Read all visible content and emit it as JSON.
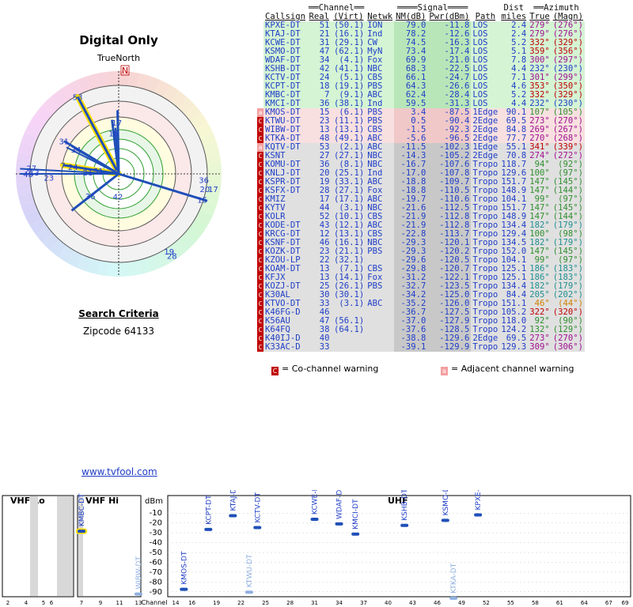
{
  "polar": {
    "title": "Digital Only",
    "true_north_label": "TrueNorth",
    "north_label": "N",
    "colors": {
      "ring_fill": "#ffffff",
      "beam": "#1f4fb8",
      "beam_highlight": "#ffe000",
      "ring_green": "#2fa02f"
    },
    "stations": [
      {
        "label": "53",
        "azimuth": 332,
        "strength": 0.85,
        "highlight": true
      },
      {
        "label": "7",
        "azimuth": 279,
        "strength": 0.55,
        "highlight": true
      },
      {
        "label": "31",
        "azimuth": 301,
        "strength": 0.62
      },
      {
        "label": "34",
        "azimuth": 300,
        "strength": 0.48
      },
      {
        "label": "24",
        "azimuth": 279,
        "strength": 0.45
      },
      {
        "label": "18",
        "azimuth": 353,
        "strength": 0.4
      },
      {
        "label": "17",
        "azimuth": 358,
        "strength": 0.5
      },
      {
        "label": "51",
        "azimuth": 279,
        "strength": 0.2
      },
      {
        "label": "21",
        "azimuth": 273,
        "strength": 0.3
      },
      {
        "label": "23",
        "azimuth": 267,
        "strength": 0.68
      },
      {
        "label": "27",
        "azimuth": 274,
        "strength": 0.85
      },
      {
        "label": "48",
        "azimuth": 270,
        "strength": 0.88
      },
      {
        "label": "13",
        "azimuth": 271,
        "strength": 0.82
      },
      {
        "label": "42",
        "azimuth": 182,
        "strength": 0.22
      },
      {
        "label": "36",
        "azimuth": 232,
        "strength": 0.35
      },
      {
        "label": "15",
        "azimuth": 107,
        "strength": 0.85
      },
      {
        "label": "36",
        "azimuth": 94,
        "strength": 0.83
      },
      {
        "label": "20",
        "azimuth": 100,
        "strength": 0.85
      },
      {
        "label": "17",
        "azimuth": 99,
        "strength": 0.93
      },
      {
        "label": "19",
        "azimuth": 147,
        "strength": 0.9
      },
      {
        "label": "28",
        "azimuth": 147,
        "strength": 0.95
      }
    ],
    "beams": [
      {
        "azimuth": 332,
        "strength": 0.85,
        "width": 3,
        "highlight": true
      },
      {
        "azimuth": 279,
        "strength": 0.55,
        "width": 3,
        "highlight": true
      },
      {
        "azimuth": 301,
        "strength": 0.62,
        "width": 3
      },
      {
        "azimuth": 300,
        "strength": 0.5,
        "width": 2
      },
      {
        "azimuth": 297,
        "strength": 0.57,
        "width": 2
      },
      {
        "azimuth": 353,
        "strength": 0.53,
        "width": 3
      },
      {
        "azimuth": 359,
        "strength": 0.62,
        "width": 3
      },
      {
        "azimuth": 356,
        "strength": 0.45,
        "width": 2
      },
      {
        "azimuth": 232,
        "strength": 0.58,
        "width": 3
      },
      {
        "azimuth": 107,
        "strength": 0.9,
        "width": 3
      },
      {
        "azimuth": 273,
        "strength": 0.96,
        "width": 2
      },
      {
        "azimuth": 270,
        "strength": 0.96,
        "width": 2
      }
    ]
  },
  "criteria": {
    "title": "Search Criteria",
    "zipcode": "Zipcode 64133"
  },
  "table": {
    "group_headers": {
      "channel": "Channel",
      "signal": "Signal",
      "azimuth": "Azimuth"
    },
    "columns": [
      "Callsign",
      "Real",
      "(Virt)",
      "Netwk",
      "NM(dB)",
      "Pwr(dBm)",
      "Path",
      "Dist miles",
      "True",
      "(Magn)"
    ],
    "col_dist_top": "Dist",
    "col_dist_bottom": "miles",
    "rows": [
      {
        "warn": "",
        "callsign": "KPXE-DT",
        "real": "51",
        "virt": "(50.1)",
        "netwk": "ION",
        "nm": "79.0",
        "pwr": "-11.8",
        "path": "LOS",
        "dist": "2.4",
        "true": "279°",
        "magn": "(276°)",
        "zone": "green",
        "azcolor": "#a01090"
      },
      {
        "warn": "",
        "callsign": "KTAJ-DT",
        "real": "21",
        "virt": "(16.1)",
        "netwk": "Ind",
        "nm": "78.2",
        "pwr": "-12.6",
        "path": "LOS",
        "dist": "2.4",
        "true": "279°",
        "magn": "(276°)",
        "zone": "green",
        "azcolor": "#a01090"
      },
      {
        "warn": "",
        "callsign": "KCWE-DT",
        "real": "31",
        "virt": "(29.1)",
        "netwk": "CW",
        "nm": "74.5",
        "pwr": "-16.3",
        "path": "LOS",
        "dist": "5.2",
        "true": "332°",
        "magn": "(329°)",
        "zone": "green",
        "azcolor": "#c00000"
      },
      {
        "warn": "",
        "callsign": "KSMO-DT",
        "real": "47",
        "virt": "(62.1)",
        "netwk": "MyN",
        "nm": "73.4",
        "pwr": "-17.4",
        "path": "LOS",
        "dist": "5.1",
        "true": "359°",
        "magn": "(356°)",
        "zone": "green",
        "azcolor": "#c00000"
      },
      {
        "warn": "",
        "callsign": "WDAF-DT",
        "real": "34",
        "virt": "(4.1)",
        "netwk": "Fox",
        "nm": "69.9",
        "pwr": "-21.0",
        "path": "LOS",
        "dist": "7.8",
        "true": "300°",
        "magn": "(297°)",
        "zone": "green",
        "azcolor": "#a01090"
      },
      {
        "warn": "",
        "callsign": "KSHB-DT",
        "real": "42",
        "virt": "(41.1)",
        "netwk": "NBC",
        "nm": "68.3",
        "pwr": "-22.5",
        "path": "LOS",
        "dist": "4.4",
        "true": "232°",
        "magn": "(230°)",
        "zone": "green",
        "azcolor": "#1f3ec7"
      },
      {
        "warn": "",
        "callsign": "KCTV-DT",
        "real": "24",
        "virt": "(5.1)",
        "netwk": "CBS",
        "nm": "66.1",
        "pwr": "-24.7",
        "path": "LOS",
        "dist": "7.1",
        "true": "301°",
        "magn": "(299°)",
        "zone": "green",
        "azcolor": "#a01090"
      },
      {
        "warn": "",
        "callsign": "KCPT-DT",
        "real": "18",
        "virt": "(19.1)",
        "netwk": "PBS",
        "nm": "64.3",
        "pwr": "-26.6",
        "path": "LOS",
        "dist": "4.6",
        "true": "353°",
        "magn": "(350°)",
        "zone": "green",
        "azcolor": "#c00000"
      },
      {
        "warn": "",
        "callsign": "KMBC-DT",
        "real": "7",
        "virt": "(9.1)",
        "netwk": "ABC",
        "nm": "62.4",
        "pwr": "-28.4",
        "path": "LOS",
        "dist": "5.2",
        "true": "332°",
        "magn": "(329°)",
        "zone": "green",
        "azcolor": "#c00000"
      },
      {
        "warn": "",
        "callsign": "KMCI-DT",
        "real": "36",
        "virt": "(38.1)",
        "netwk": "Ind",
        "nm": "59.5",
        "pwr": "-31.3",
        "path": "LOS",
        "dist": "4.4",
        "true": "232°",
        "magn": "(230°)",
        "zone": "green",
        "azcolor": "#1f3ec7"
      },
      {
        "warn": "adj",
        "callsign": "KMOS-DT",
        "real": "15",
        "virt": "(6.1)",
        "netwk": "PBS",
        "nm": "3.4",
        "pwr": "-87.5",
        "path": "1Edge",
        "dist": "90.1",
        "true": "107°",
        "magn": "(105°)",
        "zone": "pink",
        "azcolor": "#2f8f2f"
      },
      {
        "warn": "co",
        "callsign": "KTWU-DT",
        "real": "23",
        "virt": "(11.1)",
        "netwk": "PBS",
        "nm": "0.5",
        "pwr": "-90.4",
        "path": "2Edge",
        "dist": "69.5",
        "true": "273°",
        "magn": "(270°)",
        "zone": "pink",
        "azcolor": "#a01090"
      },
      {
        "warn": "co",
        "callsign": "WIBW-DT",
        "real": "13",
        "virt": "(13.1)",
        "netwk": "CBS",
        "nm": "-1.5",
        "pwr": "-92.3",
        "path": "2Edge",
        "dist": "84.8",
        "true": "269°",
        "magn": "(267°)",
        "zone": "pink",
        "azcolor": "#a01090"
      },
      {
        "warn": "co",
        "callsign": "KTKA-DT",
        "real": "48",
        "virt": "(49.1)",
        "netwk": "ABC",
        "nm": "-5.6",
        "pwr": "-96.5",
        "path": "2Edge",
        "dist": "77.7",
        "true": "270°",
        "magn": "(268°)",
        "zone": "pink",
        "azcolor": "#a01090"
      },
      {
        "warn": "adj",
        "callsign": "KQTV-DT",
        "real": "53",
        "virt": "(2.1)",
        "netwk": "ABC",
        "nm": "-11.5",
        "pwr": "-102.3",
        "path": "1Edge",
        "dist": "55.1",
        "true": "341°",
        "magn": "(339°)",
        "zone": "gray",
        "azcolor": "#c00000"
      },
      {
        "warn": "co",
        "callsign": "KSNT",
        "real": "27",
        "virt": "(27.1)",
        "netwk": "NBC",
        "nm": "-14.3",
        "pwr": "-105.2",
        "path": "2Edge",
        "dist": "70.8",
        "true": "274°",
        "magn": "(272°)",
        "zone": "gray",
        "azcolor": "#a01090"
      },
      {
        "warn": "co",
        "callsign": "KOMU-DT",
        "real": "36",
        "virt": "(8.1)",
        "netwk": "NBC",
        "nm": "-16.7",
        "pwr": "-107.6",
        "path": "Tropo",
        "dist": "118.7",
        "true": "94°",
        "magn": "(92°)",
        "zone": "gray",
        "azcolor": "#2f8f2f"
      },
      {
        "warn": "co",
        "callsign": "KNLJ-DT",
        "real": "20",
        "virt": "(25.1)",
        "netwk": "Ind",
        "nm": "-17.0",
        "pwr": "-107.8",
        "path": "Tropo",
        "dist": "129.6",
        "true": "100°",
        "magn": "(97°)",
        "zone": "gray",
        "azcolor": "#2f8f2f"
      },
      {
        "warn": "co",
        "callsign": "KSPR-DT",
        "real": "19",
        "virt": "(33.1)",
        "netwk": "ABC",
        "nm": "-18.8",
        "pwr": "-109.7",
        "path": "Tropo",
        "dist": "151.7",
        "true": "147°",
        "magn": "(145°)",
        "zone": "gray",
        "azcolor": "#2f8f2f"
      },
      {
        "warn": "co",
        "callsign": "KSFX-DT",
        "real": "28",
        "virt": "(27.1)",
        "netwk": "Fox",
        "nm": "-18.8",
        "pwr": "-110.5",
        "path": "Tropo",
        "dist": "148.9",
        "true": "147°",
        "magn": "(144°)",
        "zone": "gray",
        "azcolor": "#2f8f2f"
      },
      {
        "warn": "co",
        "callsign": "KMIZ",
        "real": "17",
        "virt": "(17.1)",
        "netwk": "ABC",
        "nm": "-19.7",
        "pwr": "-110.6",
        "path": "Tropo",
        "dist": "104.1",
        "true": "99°",
        "magn": "(97°)",
        "zone": "gray",
        "azcolor": "#2f8f2f"
      },
      {
        "warn": "co",
        "callsign": "KYTV",
        "real": "44",
        "virt": "(3.1)",
        "netwk": "NBC",
        "nm": "-21.6",
        "pwr": "-112.5",
        "path": "Tropo",
        "dist": "151.7",
        "true": "147°",
        "magn": "(145°)",
        "zone": "gray",
        "azcolor": "#2f8f2f"
      },
      {
        "warn": "co",
        "callsign": "KOLR",
        "real": "52",
        "virt": "(10.1)",
        "netwk": "CBS",
        "nm": "-21.9",
        "pwr": "-112.8",
        "path": "Tropo",
        "dist": "148.9",
        "true": "147°",
        "magn": "(144°)",
        "zone": "gray",
        "azcolor": "#2f8f2f"
      },
      {
        "warn": "co",
        "callsign": "KODE-DT",
        "real": "43",
        "virt": "(12.1)",
        "netwk": "ABC",
        "nm": "-21.9",
        "pwr": "-112.8",
        "path": "Tropo",
        "dist": "134.4",
        "true": "182°",
        "magn": "(179°)",
        "zone": "gray",
        "azcolor": "#1f8f8f"
      },
      {
        "warn": "co",
        "callsign": "KRCG-DT",
        "real": "12",
        "virt": "(13.1)",
        "netwk": "CBS",
        "nm": "-22.8",
        "pwr": "-113.7",
        "path": "Tropo",
        "dist": "129.4",
        "true": "100°",
        "magn": "(98°)",
        "zone": "gray",
        "azcolor": "#2f8f2f"
      },
      {
        "warn": "co",
        "callsign": "KSNF-DT",
        "real": "46",
        "virt": "(16.1)",
        "netwk": "NBC",
        "nm": "-29.3",
        "pwr": "-120.1",
        "path": "Tropo",
        "dist": "134.5",
        "true": "182°",
        "magn": "(179°)",
        "zone": "gray",
        "azcolor": "#1f8f8f"
      },
      {
        "warn": "co",
        "callsign": "KOZK-DT",
        "real": "23",
        "virt": "(21.1)",
        "netwk": "PBS",
        "nm": "-29.3",
        "pwr": "-120.2",
        "path": "Tropo",
        "dist": "152.0",
        "true": "147°",
        "magn": "(145°)",
        "zone": "gray",
        "azcolor": "#2f8f2f"
      },
      {
        "warn": "co",
        "callsign": "KZOU-LP",
        "real": "22",
        "virt": "(32.1)",
        "netwk": "",
        "nm": "-29.6",
        "pwr": "-120.5",
        "path": "Tropo",
        "dist": "104.1",
        "true": "99°",
        "magn": "(97°)",
        "zone": "gray",
        "azcolor": "#2f8f2f"
      },
      {
        "warn": "co",
        "callsign": "KOAM-DT",
        "real": "13",
        "virt": "(7.1)",
        "netwk": "CBS",
        "nm": "-29.8",
        "pwr": "-120.7",
        "path": "Tropo",
        "dist": "125.1",
        "true": "186°",
        "magn": "(183°)",
        "zone": "gray",
        "azcolor": "#1f8f8f"
      },
      {
        "warn": "co",
        "callsign": "KFJX",
        "real": "13",
        "virt": "(14.1)",
        "netwk": "Fox",
        "nm": "-31.2",
        "pwr": "-122.1",
        "path": "Tropo",
        "dist": "125.1",
        "true": "186°",
        "magn": "(183°)",
        "zone": "gray",
        "azcolor": "#1f8f8f"
      },
      {
        "warn": "co",
        "callsign": "KOZJ-DT",
        "real": "25",
        "virt": "(26.1)",
        "netwk": "PBS",
        "nm": "-32.7",
        "pwr": "-123.5",
        "path": "Tropo",
        "dist": "134.4",
        "true": "182°",
        "magn": "(179°)",
        "zone": "gray",
        "azcolor": "#1f8f8f"
      },
      {
        "warn": "co",
        "callsign": "K30AL",
        "real": "30",
        "virt": "(30.1)",
        "netwk": "",
        "nm": "-34.2",
        "pwr": "-125.0",
        "path": "Tropo",
        "dist": "84.4",
        "true": "205°",
        "magn": "(202°)",
        "zone": "gray",
        "azcolor": "#1f8f8f"
      },
      {
        "warn": "co",
        "callsign": "KTVO-DT",
        "real": "33",
        "virt": "(3.1)",
        "netwk": "ABC",
        "nm": "-35.2",
        "pwr": "-126.0",
        "path": "Tropo",
        "dist": "151.1",
        "true": "46°",
        "magn": "(44°)",
        "zone": "gray",
        "azcolor": "#d08000"
      },
      {
        "warn": "co",
        "callsign": "K46FG-D",
        "real": "46",
        "virt": "",
        "netwk": "",
        "nm": "-36.7",
        "pwr": "-127.5",
        "path": "Tropo",
        "dist": "105.2",
        "true": "322°",
        "magn": "(320°)",
        "zone": "gray",
        "azcolor": "#c00000"
      },
      {
        "warn": "co",
        "callsign": "K56AU",
        "real": "47",
        "virt": "(56.1)",
        "netwk": "",
        "nm": "-37.0",
        "pwr": "-127.9",
        "path": "Tropo",
        "dist": "118.0",
        "true": "92°",
        "magn": "(90°)",
        "zone": "gray",
        "azcolor": "#2f8f2f"
      },
      {
        "warn": "co",
        "callsign": "K64FQ",
        "real": "38",
        "virt": "(64.1)",
        "netwk": "",
        "nm": "-37.6",
        "pwr": "-128.5",
        "path": "Tropo",
        "dist": "124.2",
        "true": "132°",
        "magn": "(129°)",
        "zone": "gray",
        "azcolor": "#2f8f2f"
      },
      {
        "warn": "co",
        "callsign": "K40IJ-D",
        "real": "40",
        "virt": "",
        "netwk": "",
        "nm": "-38.8",
        "pwr": "-129.6",
        "path": "2Edge",
        "dist": "69.5",
        "true": "273°",
        "magn": "(270°)",
        "zone": "gray",
        "azcolor": "#a01090"
      },
      {
        "warn": "co",
        "callsign": "K33AC-D",
        "real": "33",
        "virt": "",
        "netwk": "",
        "nm": "-39.1",
        "pwr": "-129.9",
        "path": "Tropo",
        "dist": "129.3",
        "true": "309°",
        "magn": "(306°)",
        "zone": "gray",
        "azcolor": "#a01090"
      }
    ],
    "zone_colors": {
      "green": "#d4f4d4",
      "pink": "#f8e0e0",
      "gray": "#e0e0e0"
    },
    "warn_glyph": "C",
    "adj_glyph": "a"
  },
  "legend": {
    "co_label": "= Co-channel warning",
    "adj_label": "= Adjacent channel warning",
    "co_color": "#c00000",
    "adj_color": "#f4a0a0"
  },
  "link": {
    "text": "www.tvfool.com"
  },
  "spectrum": {
    "vhf_lo_label": "VHF Lo",
    "vhf_hi_label": "VHF Hi",
    "uhf_label": "UHF",
    "dbm_label": "dBm",
    "channel_label": "Channel",
    "y_ticks": [
      "-10",
      "-20",
      "-30",
      "-40",
      "-50",
      "-60",
      "-70",
      "-80",
      "-90"
    ],
    "vhf_lo_ticks": [
      "2",
      "4",
      "5",
      "6"
    ],
    "vhf_hi_ticks": [
      "7",
      "9",
      "11",
      "13"
    ],
    "uhf_ticks": [
      "14",
      "16",
      "19",
      "22",
      "25",
      "28",
      "31",
      "34",
      "37",
      "40",
      "43",
      "46",
      "49",
      "52",
      "55",
      "58",
      "61",
      "64",
      "67",
      "69"
    ],
    "stations": [
      {
        "label": "KMBC-DT",
        "band": "vhf_hi",
        "channel": 7,
        "pwr": -28.4,
        "strong": true,
        "highlight": true
      },
      {
        "label": "WIBW-DT",
        "band": "vhf_hi",
        "channel": 13,
        "pwr": -92.3,
        "strong": false
      },
      {
        "label": "KMOS-DT",
        "band": "uhf",
        "channel": 15,
        "pwr": -87.5,
        "strong": true
      },
      {
        "label": "KCPT-DT",
        "band": "uhf",
        "channel": 18,
        "pwr": -26.6,
        "strong": true
      },
      {
        "label": "KTAJ-DT",
        "band": "uhf",
        "channel": 21,
        "pwr": -12.6,
        "strong": true
      },
      {
        "label": "KTWU-DT",
        "band": "uhf",
        "channel": 23,
        "pwr": -90.4,
        "strong": false
      },
      {
        "label": "KCTV-DT",
        "band": "uhf",
        "channel": 24,
        "pwr": -24.7,
        "strong": true
      },
      {
        "label": "KCWE-DT",
        "band": "uhf",
        "channel": 31,
        "pwr": -16.3,
        "strong": true
      },
      {
        "label": "WDAF-DT",
        "band": "uhf",
        "channel": 34,
        "pwr": -21.0,
        "strong": true
      },
      {
        "label": "KMCI-DT",
        "band": "uhf",
        "channel": 36,
        "pwr": -31.3,
        "strong": true
      },
      {
        "label": "KSHB-DT",
        "band": "uhf",
        "channel": 42,
        "pwr": -22.5,
        "strong": true
      },
      {
        "label": "KSMO-DT",
        "band": "uhf",
        "channel": 47,
        "pwr": -17.4,
        "strong": true
      },
      {
        "label": "KTKA-DT",
        "band": "uhf",
        "channel": 48,
        "pwr": -96.5,
        "strong": false
      },
      {
        "label": "KPXE-DT",
        "band": "uhf",
        "channel": 51,
        "pwr": -11.8,
        "strong": true
      }
    ]
  }
}
